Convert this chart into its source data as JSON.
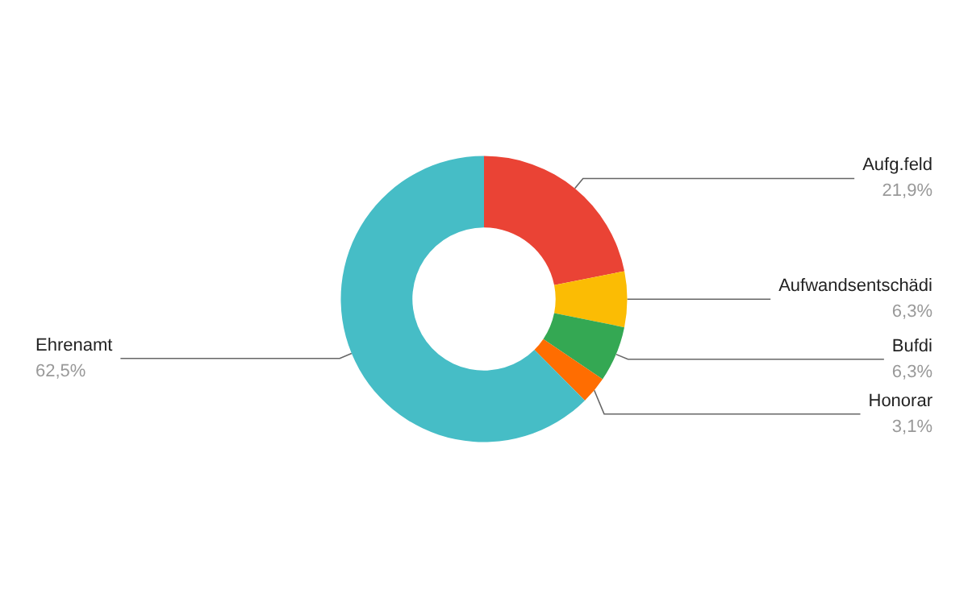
{
  "chart_data": {
    "type": "donut",
    "categories": [
      "Aufg.feld",
      "Aufwandsentschädi",
      "Bufdi",
      "Honorar",
      "Ehrenamt"
    ],
    "values": [
      21.9,
      6.3,
      6.3,
      3.1,
      62.5
    ],
    "colors": [
      "#ea4335",
      "#fbbc04",
      "#34a853",
      "#ff6d01",
      "#46bdc6"
    ],
    "value_labels": [
      "21,9%",
      "6,3%",
      "6,3%",
      "3,1%",
      "62,5%"
    ],
    "legend": false
  }
}
